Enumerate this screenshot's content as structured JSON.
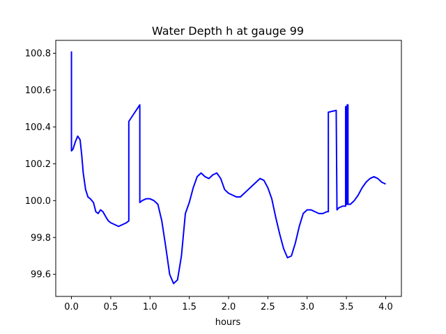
{
  "chart_data": {
    "type": "line",
    "title": "Water Depth h at gauge 99",
    "xlabel": "hours",
    "ylabel": "",
    "xlim": [
      -0.2,
      4.2
    ],
    "ylim": [
      99.48,
      100.87
    ],
    "xticks": [
      0.0,
      0.5,
      1.0,
      1.5,
      2.0,
      2.5,
      3.0,
      3.5,
      4.0
    ],
    "xtick_labels": [
      "0.0",
      "0.5",
      "1.0",
      "1.5",
      "2.0",
      "2.5",
      "3.0",
      "3.5",
      "4.0"
    ],
    "yticks": [
      99.6,
      99.8,
      100.0,
      100.2,
      100.4,
      100.6,
      100.8
    ],
    "ytick_labels": [
      "99.6",
      "99.8",
      "100.0",
      "100.2",
      "100.4",
      "100.6",
      "100.8"
    ],
    "grid": false,
    "series": [
      {
        "color": "#0000ff",
        "x": [
          0.0,
          0.0,
          0.02,
          0.05,
          0.08,
          0.11,
          0.13,
          0.15,
          0.18,
          0.21,
          0.24,
          0.28,
          0.31,
          0.34,
          0.37,
          0.4,
          0.44,
          0.47,
          0.5,
          0.55,
          0.6,
          0.65,
          0.7,
          0.73,
          0.73,
          0.87,
          0.87,
          0.9,
          0.95,
          1.0,
          1.05,
          1.1,
          1.15,
          1.2,
          1.25,
          1.3,
          1.35,
          1.4,
          1.45,
          1.5,
          1.55,
          1.6,
          1.65,
          1.7,
          1.75,
          1.8,
          1.85,
          1.9,
          1.95,
          2.0,
          2.05,
          2.1,
          2.15,
          2.2,
          2.25,
          2.3,
          2.35,
          2.4,
          2.45,
          2.5,
          2.55,
          2.6,
          2.65,
          2.7,
          2.75,
          2.8,
          2.85,
          2.9,
          2.95,
          3.0,
          3.05,
          3.1,
          3.15,
          3.2,
          3.25,
          3.27,
          3.27,
          3.37,
          3.38,
          3.4,
          3.45,
          3.49,
          3.49,
          3.5,
          3.5,
          3.51,
          3.51,
          3.52,
          3.52,
          3.55,
          3.6,
          3.65,
          3.7,
          3.75,
          3.8,
          3.85,
          3.9,
          3.95,
          4.0
        ],
        "y": [
          100.81,
          100.27,
          100.28,
          100.32,
          100.35,
          100.33,
          100.25,
          100.15,
          100.06,
          100.02,
          100.01,
          99.99,
          99.94,
          99.93,
          99.95,
          99.94,
          99.91,
          99.89,
          99.88,
          99.87,
          99.86,
          99.87,
          99.88,
          99.89,
          100.43,
          100.52,
          99.99,
          100.0,
          100.01,
          100.01,
          100.0,
          99.98,
          99.89,
          99.75,
          99.6,
          99.55,
          99.57,
          99.7,
          99.93,
          99.99,
          100.07,
          100.13,
          100.15,
          100.13,
          100.12,
          100.14,
          100.15,
          100.12,
          100.06,
          100.04,
          100.03,
          100.02,
          100.02,
          100.04,
          100.06,
          100.08,
          100.1,
          100.12,
          100.11,
          100.07,
          100.01,
          99.91,
          99.82,
          99.74,
          99.69,
          99.7,
          99.77,
          99.86,
          99.93,
          99.95,
          99.95,
          99.94,
          99.93,
          99.93,
          99.94,
          99.94,
          100.48,
          100.49,
          99.95,
          99.96,
          99.97,
          99.97,
          100.51,
          100.51,
          99.98,
          99.98,
          100.52,
          100.52,
          99.98,
          99.98,
          100.0,
          100.03,
          100.07,
          100.1,
          100.12,
          100.13,
          100.12,
          100.1,
          100.09
        ]
      }
    ]
  }
}
